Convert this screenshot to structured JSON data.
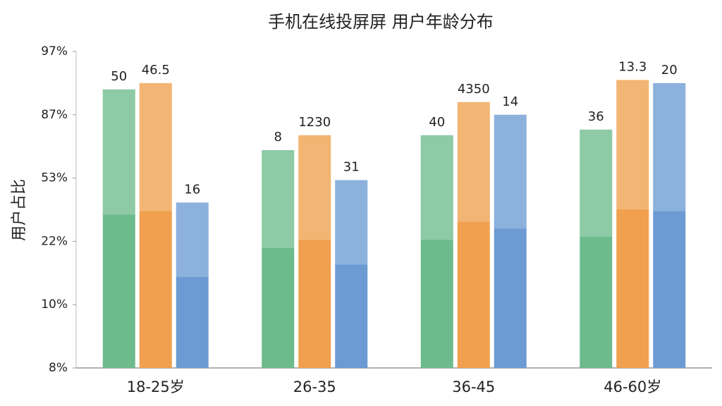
{
  "chart_data": {
    "type": "bar",
    "title": "手机在线投屏屏 用户年龄分布",
    "y_label": "用户占比",
    "categories": [
      "18-25岁",
      "26-35",
      "36-45",
      "46-60岁"
    ],
    "series": [
      {
        "color": "#6dbb8c",
        "values": [
          91,
          68,
          76,
          79
        ]
      },
      {
        "color": "#f0a04e",
        "values": [
          92,
          76,
          89,
          92.5
        ]
      },
      {
        "color": "#6b9bd2",
        "values": [
          41,
          52,
          87,
          92
        ]
      }
    ],
    "annotations": [
      [
        "50",
        "8",
        "40",
        "36"
      ],
      [
        "46.5",
        "1230",
        "4350",
        "13.3"
      ],
      [
        "16",
        "31",
        "14",
        "20"
      ]
    ],
    "ylim": [
      8,
      97
    ],
    "yticks": [
      {
        "value": 8,
        "label": "8%"
      },
      {
        "value": 10,
        "label": "10%"
      },
      {
        "value": 22,
        "label": "22%"
      },
      {
        "value": 53,
        "label": "53%"
      },
      {
        "value": 87,
        "label": "87%"
      },
      {
        "value": 97,
        "label": "97%"
      }
    ]
  }
}
